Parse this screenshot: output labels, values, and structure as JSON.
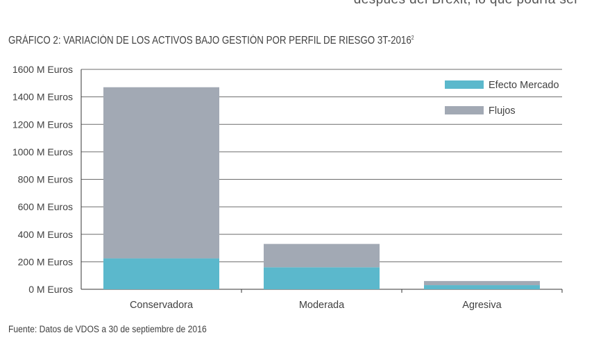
{
  "page": {
    "top_fragment": "después del Brexit, lo que podría ser",
    "title": "GRÁFICO 2: VARIACIÓN DE LOS ACTIVOS BAJO GESTIÓN POR PERFIL DE RIESGO 3T-2016",
    "title_footnote": "2",
    "source": "Fuente: Datos de VDOS a 30 de septiembre de 2016"
  },
  "chart_data": {
    "type": "bar",
    "stacked": true,
    "title": "GRÁFICO 2: VARIACIÓN DE LOS ACTIVOS BAJO GESTIÓN POR PERFIL DE RIESGO 3T-2016",
    "categories": [
      "Conservadora",
      "Moderada",
      "Agresiva"
    ],
    "series": [
      {
        "name": "Efecto Mercado",
        "color": "#5bb8cc",
        "values": [
          225,
          160,
          30
        ]
      },
      {
        "name": "Flujos",
        "color": "#a2a9b4",
        "values": [
          1245,
          170,
          30
        ]
      }
    ],
    "ylim": [
      0,
      1600
    ],
    "yticks": [
      0,
      200,
      400,
      600,
      800,
      1000,
      1200,
      1400,
      1600
    ],
    "ytick_labels": [
      "0 M Euros",
      "200 M Euros",
      "400 M Euros",
      "600 M Euros",
      "800 M Euros",
      "1000 M Euros",
      "1200 M Euros",
      "1400 M Euros",
      "1600 M Euros"
    ],
    "xlabel": "",
    "ylabel": "",
    "grid": true,
    "legend_position": "top-right"
  }
}
